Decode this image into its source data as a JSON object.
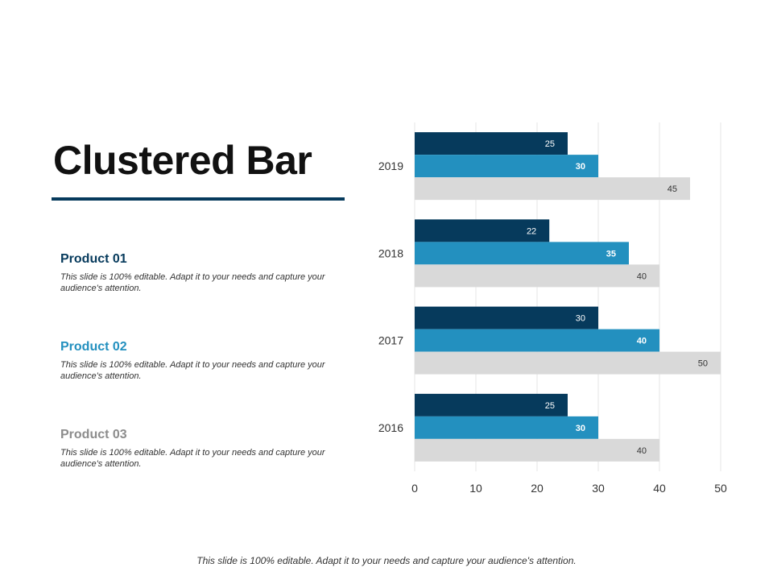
{
  "slide": {
    "title": "Clustered Bar",
    "footer": "This slide is 100% editable. Adapt it to your needs and capture your audience's attention."
  },
  "products": [
    {
      "name": "Product 01",
      "description": "This slide is 100% editable. Adapt it to your needs and capture your audience's attention.",
      "color": "#063a5c"
    },
    {
      "name": "Product 02",
      "description": "This slide is 100% editable. Adapt it to your needs and capture your audience's attention.",
      "color": "#2390bf"
    },
    {
      "name": "Product 03",
      "description": "This slide is 100% editable. Adapt it to your needs and capture your audience's attention.",
      "color": "#8c8c8c"
    }
  ],
  "chart_data": {
    "type": "bar",
    "orientation": "horizontal",
    "title": "",
    "xlabel": "",
    "ylabel": "",
    "categories": [
      "2016",
      "2017",
      "2018",
      "2019"
    ],
    "series": [
      {
        "name": "Product 01",
        "values": [
          25,
          30,
          22,
          25
        ],
        "color": "#063a5c",
        "label_color": "#ffffff",
        "label_bold": false
      },
      {
        "name": "Product 02",
        "values": [
          30,
          40,
          35,
          30
        ],
        "color": "#2390bf",
        "label_color": "#ffffff",
        "label_bold": true
      },
      {
        "name": "Product 03",
        "values": [
          40,
          50,
          40,
          45
        ],
        "color": "#d9d9d9",
        "label_color": "#333333",
        "label_bold": false
      }
    ],
    "xlim": [
      0,
      50
    ],
    "xticks": [
      0,
      10,
      20,
      30,
      40,
      50
    ],
    "grid": true,
    "data_labels": true,
    "legend": "none"
  }
}
